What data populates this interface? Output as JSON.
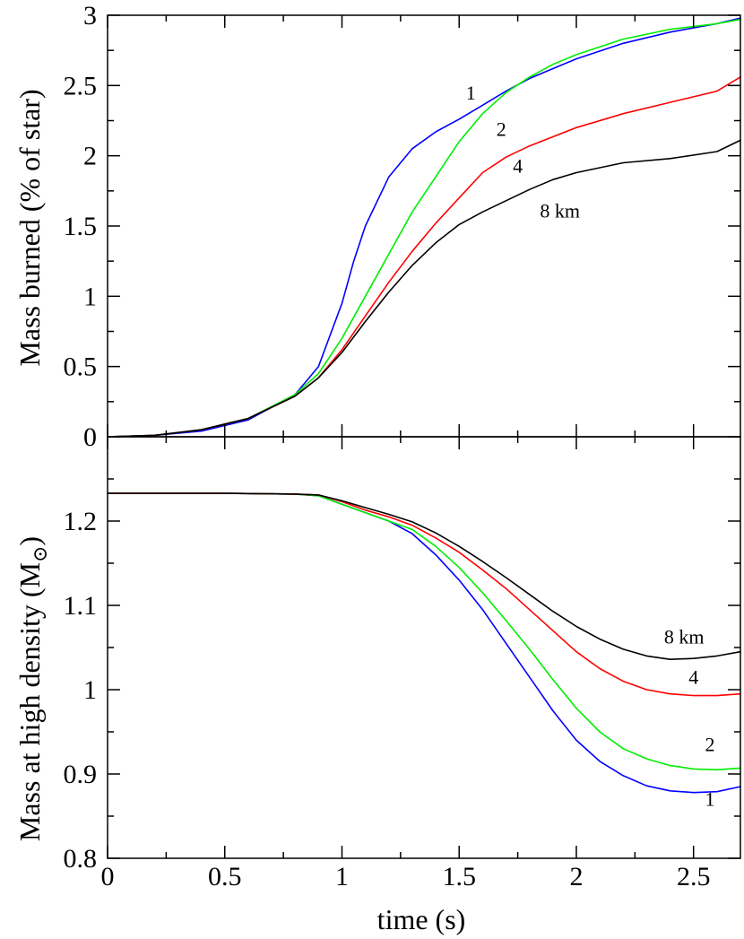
{
  "chart_data": [
    {
      "type": "line",
      "ylabel": "Mass burned (% of star)",
      "xlabel": "",
      "xlim": [
        0,
        2.7
      ],
      "ylim": [
        0,
        3
      ],
      "xticks": [
        "0",
        "0.5",
        "1",
        "1.5",
        "2",
        "2.5"
      ],
      "yticks": [
        "0",
        "0.5",
        "1",
        "1.5",
        "2",
        "2.5",
        "3"
      ],
      "series": [
        {
          "name": "1",
          "color": "#0000ff",
          "x": [
            0,
            0.2,
            0.4,
            0.6,
            0.8,
            0.9,
            1.0,
            1.05,
            1.1,
            1.2,
            1.3,
            1.4,
            1.5,
            1.6,
            1.7,
            1.8,
            2.0,
            2.2,
            2.4,
            2.6,
            2.7
          ],
          "y": [
            0,
            0.01,
            0.04,
            0.12,
            0.3,
            0.5,
            0.95,
            1.25,
            1.5,
            1.85,
            2.05,
            2.17,
            2.26,
            2.36,
            2.46,
            2.55,
            2.69,
            2.8,
            2.88,
            2.94,
            2.98
          ]
        },
        {
          "name": "2",
          "color": "#00ee00",
          "x": [
            0,
            0.2,
            0.4,
            0.6,
            0.8,
            0.9,
            1.0,
            1.1,
            1.2,
            1.3,
            1.4,
            1.5,
            1.6,
            1.7,
            1.8,
            1.9,
            2.0,
            2.2,
            2.4,
            2.6,
            2.7
          ],
          "y": [
            0,
            0.01,
            0.05,
            0.13,
            0.3,
            0.45,
            0.7,
            1.0,
            1.3,
            1.6,
            1.85,
            2.1,
            2.3,
            2.45,
            2.56,
            2.65,
            2.72,
            2.83,
            2.9,
            2.94,
            2.97
          ]
        },
        {
          "name": "4",
          "color": "#ff0000",
          "x": [
            0,
            0.2,
            0.4,
            0.6,
            0.8,
            0.9,
            1.0,
            1.1,
            1.2,
            1.3,
            1.4,
            1.5,
            1.6,
            1.7,
            1.8,
            2.0,
            2.2,
            2.4,
            2.6,
            2.7
          ],
          "y": [
            0,
            0.01,
            0.05,
            0.13,
            0.29,
            0.42,
            0.62,
            0.86,
            1.1,
            1.32,
            1.52,
            1.7,
            1.88,
            1.99,
            2.07,
            2.2,
            2.3,
            2.38,
            2.46,
            2.56
          ]
        },
        {
          "name": "8 km",
          "color": "#000000",
          "x": [
            0,
            0.2,
            0.4,
            0.6,
            0.8,
            0.9,
            1.0,
            1.1,
            1.2,
            1.3,
            1.4,
            1.5,
            1.6,
            1.7,
            1.8,
            1.9,
            2.0,
            2.2,
            2.4,
            2.6,
            2.7
          ],
          "y": [
            0,
            0.01,
            0.05,
            0.13,
            0.29,
            0.42,
            0.6,
            0.82,
            1.03,
            1.22,
            1.38,
            1.51,
            1.6,
            1.68,
            1.76,
            1.83,
            1.88,
            1.95,
            1.98,
            2.03,
            2.11
          ]
        }
      ],
      "annotations": [
        {
          "text": "1",
          "x": 1.55,
          "y": 2.4
        },
        {
          "text": "2",
          "x": 1.68,
          "y": 2.14
        },
        {
          "text": "4",
          "x": 1.75,
          "y": 1.88
        },
        {
          "text": "8 km",
          "x": 1.93,
          "y": 1.56
        }
      ]
    },
    {
      "type": "line",
      "ylabel": "Mass at high density (M",
      "ylabel_suffix": ")",
      "ylabel_symbol": "⊙",
      "xlabel": "time (s)",
      "xlim": [
        0,
        2.7
      ],
      "ylim": [
        0.8,
        1.3
      ],
      "xticks": [
        "0",
        "0.5",
        "1",
        "1.5",
        "2",
        "2.5"
      ],
      "yticks": [
        "0.8",
        "0.9",
        "1",
        "1.1",
        "1.2"
      ],
      "series": [
        {
          "name": "1",
          "color": "#0000ff",
          "x": [
            0,
            0.5,
            0.8,
            0.9,
            1.0,
            1.1,
            1.2,
            1.3,
            1.4,
            1.5,
            1.6,
            1.7,
            1.8,
            1.9,
            2.0,
            2.1,
            2.2,
            2.3,
            2.4,
            2.5,
            2.6,
            2.7
          ],
          "y": [
            1.233,
            1.233,
            1.232,
            1.23,
            1.22,
            1.21,
            1.2,
            1.185,
            1.16,
            1.13,
            1.095,
            1.055,
            1.015,
            0.975,
            0.94,
            0.915,
            0.898,
            0.886,
            0.88,
            0.878,
            0.879,
            0.885
          ]
        },
        {
          "name": "2",
          "color": "#00ee00",
          "x": [
            0,
            0.5,
            0.8,
            0.9,
            1.0,
            1.1,
            1.2,
            1.3,
            1.4,
            1.5,
            1.6,
            1.7,
            1.8,
            1.9,
            2.0,
            2.1,
            2.2,
            2.3,
            2.4,
            2.5,
            2.6,
            2.7
          ],
          "y": [
            1.233,
            1.233,
            1.232,
            1.23,
            1.22,
            1.21,
            1.2,
            1.19,
            1.17,
            1.145,
            1.115,
            1.082,
            1.048,
            1.012,
            0.978,
            0.95,
            0.93,
            0.918,
            0.91,
            0.906,
            0.905,
            0.907
          ]
        },
        {
          "name": "4",
          "color": "#ff0000",
          "x": [
            0,
            0.5,
            0.8,
            0.9,
            1.0,
            1.1,
            1.2,
            1.3,
            1.4,
            1.5,
            1.6,
            1.7,
            1.8,
            1.9,
            2.0,
            2.1,
            2.2,
            2.3,
            2.4,
            2.5,
            2.6,
            2.7
          ],
          "y": [
            1.233,
            1.233,
            1.232,
            1.231,
            1.223,
            1.213,
            1.205,
            1.195,
            1.18,
            1.163,
            1.142,
            1.12,
            1.095,
            1.07,
            1.045,
            1.025,
            1.01,
            1.0,
            0.995,
            0.993,
            0.993,
            0.995
          ]
        },
        {
          "name": "8 km",
          "color": "#000000",
          "x": [
            0,
            0.5,
            0.8,
            0.9,
            1.0,
            1.1,
            1.2,
            1.3,
            1.4,
            1.5,
            1.6,
            1.7,
            1.8,
            1.9,
            2.0,
            2.1,
            2.2,
            2.3,
            2.4,
            2.5,
            2.6,
            2.7
          ],
          "y": [
            1.233,
            1.233,
            1.232,
            1.231,
            1.224,
            1.216,
            1.208,
            1.199,
            1.186,
            1.17,
            1.152,
            1.133,
            1.113,
            1.093,
            1.075,
            1.06,
            1.048,
            1.04,
            1.036,
            1.037,
            1.04,
            1.045
          ]
        }
      ],
      "annotations": [
        {
          "text": "8 km",
          "x": 2.46,
          "y": 1.055
        },
        {
          "text": "4",
          "x": 2.5,
          "y": 1.007
        },
        {
          "text": "2",
          "x": 2.57,
          "y": 0.927
        },
        {
          "text": "1",
          "x": 2.57,
          "y": 0.862
        }
      ]
    }
  ],
  "colors": {
    "series_1": "#0000ff",
    "series_2": "#00ee00",
    "series_4": "#ff0000",
    "series_8km": "#000000"
  }
}
